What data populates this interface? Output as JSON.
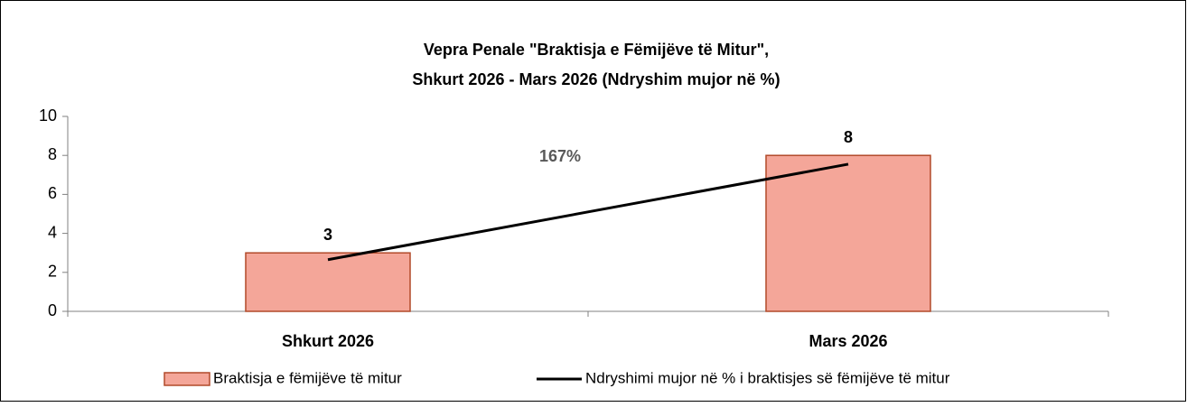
{
  "chart_data": {
    "type": "bar",
    "title": [
      "Vepra Penale \"Braktisja e Fëmijëve të Mitur\",",
      "Shkurt 2026 - Mars  2026  (Ndryshim mujor në %)"
    ],
    "categories": [
      "Shkurt 2026",
      "Mars 2026"
    ],
    "series": [
      {
        "name": "Braktisja e fëmijëve të mitur",
        "type": "bar",
        "color": "#f4a699",
        "edgecolor": "#b24a2a",
        "values": [
          3,
          8
        ]
      },
      {
        "name": "Ndryshimi mujor në % i braktisjes së fëmijëve të mitur",
        "type": "line",
        "color": "#000000",
        "values": [
          2.65,
          7.55
        ]
      }
    ],
    "annotations": [
      "167%"
    ],
    "ylim": [
      0,
      10
    ],
    "yticks": [
      0,
      2,
      4,
      6,
      8,
      10
    ],
    "grid": false,
    "legend": "bottom"
  }
}
